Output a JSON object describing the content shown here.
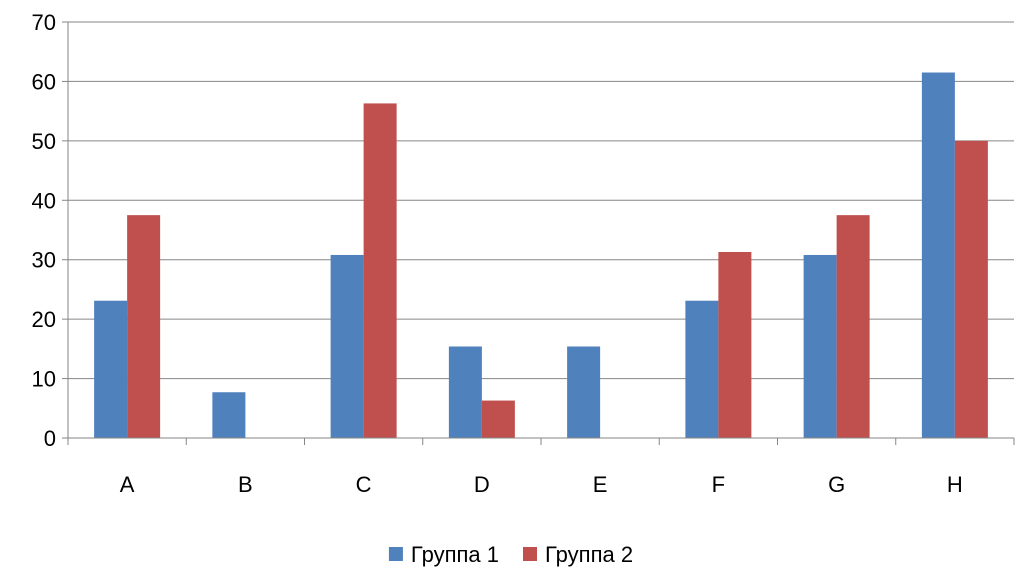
{
  "chart_data": {
    "type": "bar",
    "categories": [
      "A",
      "B",
      "C",
      "D",
      "E",
      "F",
      "G",
      "H"
    ],
    "series": [
      {
        "name": "Группа 1",
        "color": "#4F81BD",
        "values": [
          23.1,
          7.7,
          30.8,
          15.4,
          15.4,
          23.1,
          30.8,
          61.5
        ]
      },
      {
        "name": "Группа 2",
        "color": "#C0504D",
        "values": [
          37.5,
          0,
          56.3,
          6.3,
          0,
          31.3,
          37.5,
          50.0
        ]
      }
    ],
    "ylim": [
      0,
      70
    ],
    "yticks": [
      0,
      10,
      20,
      30,
      40,
      50,
      60,
      70
    ],
    "grid": true,
    "legend_position": "bottom"
  }
}
